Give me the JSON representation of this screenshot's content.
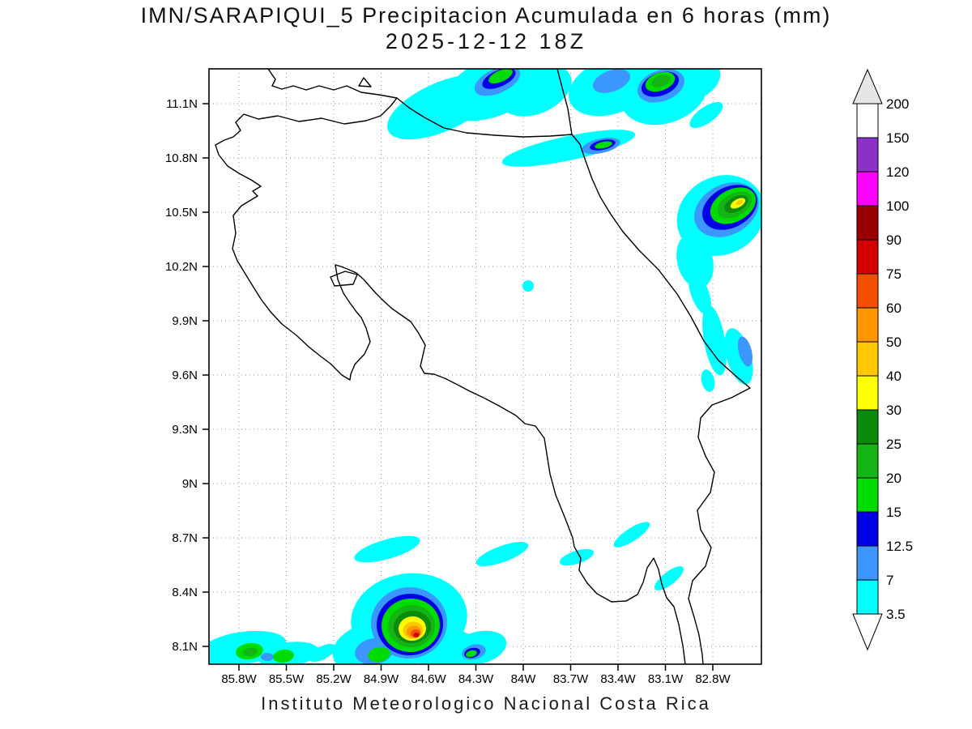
{
  "chart_data": {
    "type": "heatmap",
    "title": "IMN/SARAPIQUI_5 Precipitacion Acumulada en 6 horas (mm)",
    "subtitle": "2025-12-12 18Z",
    "caption": "Instituto Meteorologico Nacional Costa Rica",
    "units": "mm",
    "region": "Costa Rica",
    "x_axis_label_type": "longitude",
    "y_axis_label_type": "latitude",
    "x_ticks": [
      "85.8W",
      "85.5W",
      "85.2W",
      "84.9W",
      "84.6W",
      "84.3W",
      "84W",
      "83.7W",
      "83.4W",
      "83.1W",
      "82.8W"
    ],
    "y_ticks": [
      "11.1N",
      "10.8N",
      "10.5N",
      "10.2N",
      "9.9N",
      "9.6N",
      "9.3N",
      "9N",
      "8.7N",
      "8.4N",
      "8.1N"
    ],
    "grid": "dotted",
    "levels_mm": [
      3.5,
      7,
      12.5,
      15,
      20,
      25,
      30,
      40,
      50,
      60,
      75,
      90,
      100,
      120,
      150,
      200
    ],
    "palette": {
      "3.5": "#00ffff",
      "7": "#3c96ff",
      "12.5": "#0000e6",
      "15": "#00dc00",
      "20": "#14b414",
      "25": "#0a8c0a",
      "30": "#ffff00",
      "40": "#ffc800",
      "50": "#ff9600",
      "60": "#f55000",
      "75": "#d40000",
      "90": "#9b0000",
      "100": "#ff00ff",
      "120": "#8c30c8",
      "150": "#ffffff",
      "200": "#e6e6e6"
    },
    "colorbar": {
      "position": "right",
      "boundary_labels_top_to_bottom": [
        "200",
        "150",
        "120",
        "100",
        "90",
        "75",
        "60",
        "50",
        "40",
        "30",
        "25",
        "20",
        "15",
        "12.5",
        "7",
        "3.5"
      ],
      "segment_colors_top_to_bottom": [
        "#ffffff",
        "#8c30c8",
        "#ff00ff",
        "#9b0000",
        "#d40000",
        "#f55000",
        "#ff9600",
        "#ffc800",
        "#ffff00",
        "#0a8c0a",
        "#14b414",
        "#00dc00",
        "#0000e6",
        "#3c96ff",
        "#00ffff"
      ],
      "above_max_color": "#e6e6e6",
      "below_min_color": "#ffffff"
    },
    "precip_regions": [
      {
        "area": "northern border band near 11.1-11.3N, 84.8-83.4W",
        "intensity_mm": "3.5-20",
        "note": "diagonal light-rain streaks with small blue/green cores at top edge"
      },
      {
        "area": "streak near 10.8N, 84.3-83.7W",
        "intensity_mm": "3.5-15",
        "note": "thin band with small blue-green core"
      },
      {
        "area": "Caribbean cell near 10.5N, 83.0W",
        "intensity_mm": "3.5-50",
        "note": "strong cell, yellow/amber core inside greens and blues"
      },
      {
        "area": "Caribbean coast streaks 9.6-10.2N near 83.0W",
        "intensity_mm": "3.5-12.5"
      },
      {
        "area": "isolated spot near 10.1N, 84.0W",
        "intensity_mm": "3.5-7"
      },
      {
        "area": "Pacific south cell near 8.1-8.4N, 84.6W",
        "intensity_mm": "3.5-90",
        "note": "strongest cell on map, small red core"
      },
      {
        "area": "southwest corner cells near 8.1N, 85.4-85.7W",
        "intensity_mm": "3.5-25"
      },
      {
        "area": "south cell near 8.1N, 84.3W",
        "intensity_mm": "3.5-15"
      },
      {
        "area": "scattered thin streaks 8.4-8.7N between 84.9W and 83.1W",
        "intensity_mm": "3.5-7"
      }
    ]
  }
}
